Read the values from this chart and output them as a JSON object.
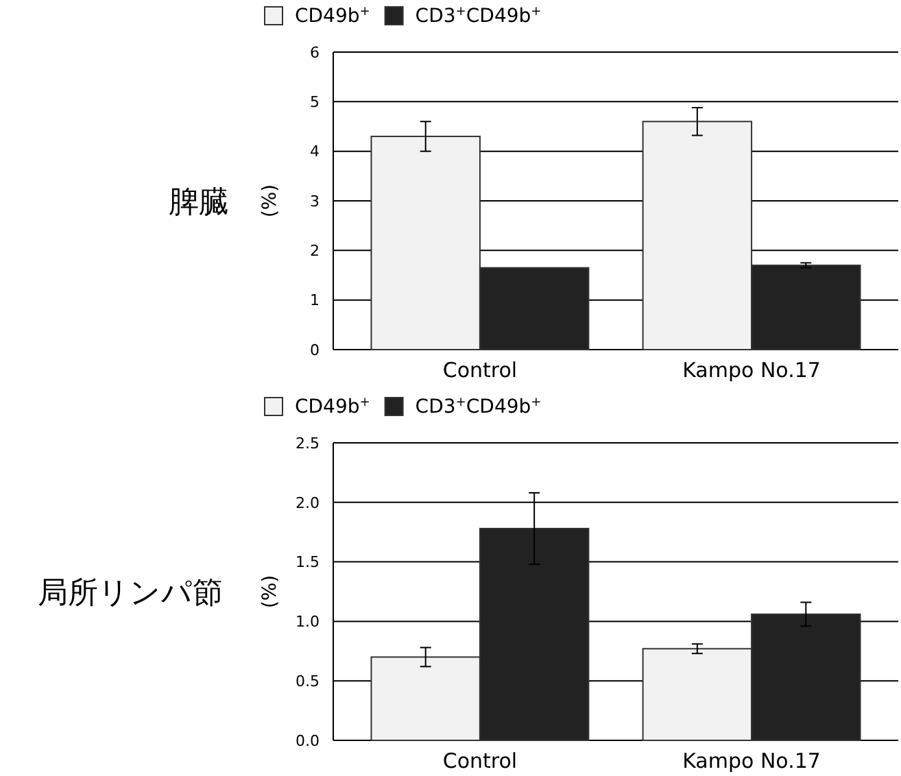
{
  "chart_data": [
    {
      "type": "bar",
      "title": "脾臓",
      "ylabel": "(%)",
      "categories": [
        "Control",
        "Kampo No.17"
      ],
      "series": [
        {
          "name": "CD49b$^{+}$",
          "color": "#f2f2f2",
          "values": [
            4.3,
            4.6
          ],
          "errors": [
            0.3,
            0.28
          ]
        },
        {
          "name": "CD3$^{+}$CD49b$^{+}$",
          "color": "#222222",
          "values": [
            1.65,
            1.7
          ],
          "errors": [
            null,
            0.05
          ]
        }
      ],
      "ylim": [
        0,
        6
      ],
      "yticks": [
        0,
        1,
        2,
        3,
        4,
        5,
        6
      ],
      "grid": "y",
      "legend": "top left"
    },
    {
      "type": "bar",
      "title": "局所リンパ節",
      "ylabel": "(%)",
      "categories": [
        "Control",
        "Kampo No.17"
      ],
      "series": [
        {
          "name": "CD49b$^{+}$",
          "color": "#f2f2f2",
          "values": [
            0.7,
            0.77
          ],
          "errors": [
            0.08,
            0.04
          ]
        },
        {
          "name": "CD3$^{+}$CD49b$^{+}$",
          "color": "#222222",
          "values": [
            1.78,
            1.06
          ],
          "errors": [
            0.3,
            0.1
          ]
        }
      ],
      "ylim": [
        0,
        2.5
      ],
      "yticks": [
        {
          "value": 0,
          "label": "0.0"
        },
        {
          "value": 0.5,
          "label": "0.5"
        },
        {
          "value": 1,
          "label": "1.0"
        },
        {
          "value": 1.5,
          "label": "1.5"
        },
        {
          "value": 2,
          "label": "2.0"
        },
        2.5
      ],
      "grid": "y",
      "legend": "top left"
    }
  ]
}
